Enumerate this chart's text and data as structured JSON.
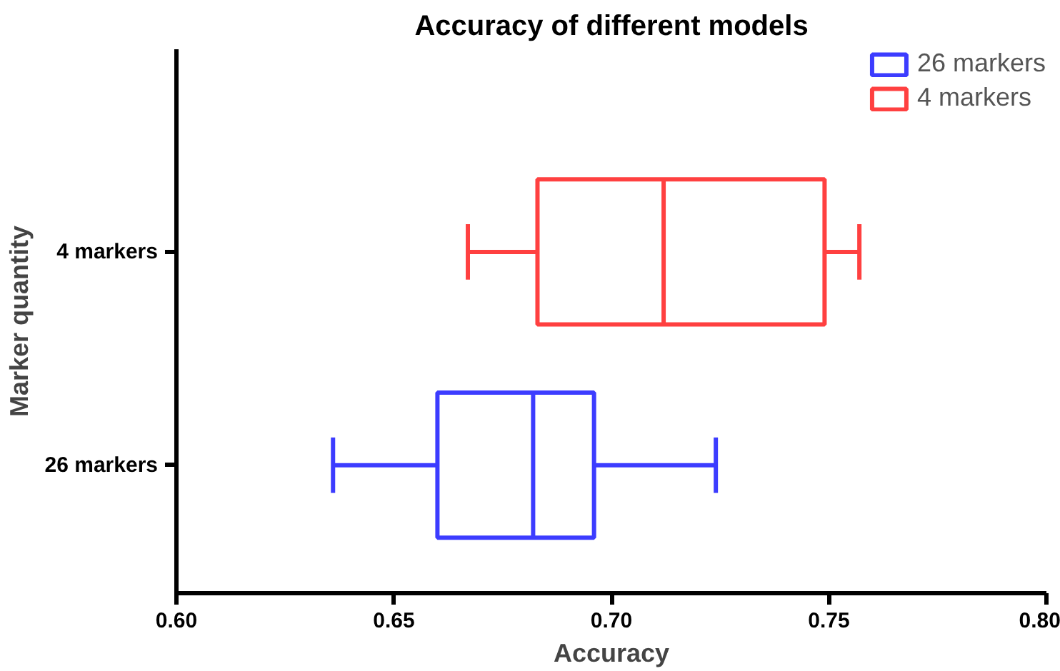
{
  "chart_data": {
    "type": "box",
    "orientation": "horizontal",
    "title": "Accuracy of different models",
    "xlabel": "Accuracy",
    "ylabel": "Marker quantity",
    "categories": [
      "4 markers",
      "26 markers"
    ],
    "series": [
      {
        "name": "26 markers",
        "color": "#3c3cff",
        "boxes": [
          null,
          {
            "low": 0.636,
            "q1": 0.66,
            "median": 0.682,
            "q3": 0.696,
            "high": 0.724
          }
        ]
      },
      {
        "name": "4 markers",
        "color": "#ff4040",
        "boxes": [
          {
            "low": 0.667,
            "q1": 0.683,
            "median": 0.712,
            "q3": 0.749,
            "high": 0.757
          },
          null
        ]
      }
    ],
    "xlim": [
      0.6,
      0.8
    ],
    "xticks": [
      {
        "value": 0.6,
        "label": "0.60"
      },
      {
        "value": 0.65,
        "label": "0.65"
      },
      {
        "value": 0.7,
        "label": "0.70"
      },
      {
        "value": 0.75,
        "label": "0.75"
      },
      {
        "value": 0.8,
        "label": "0.80"
      }
    ],
    "grid": false,
    "legend": "top right"
  }
}
